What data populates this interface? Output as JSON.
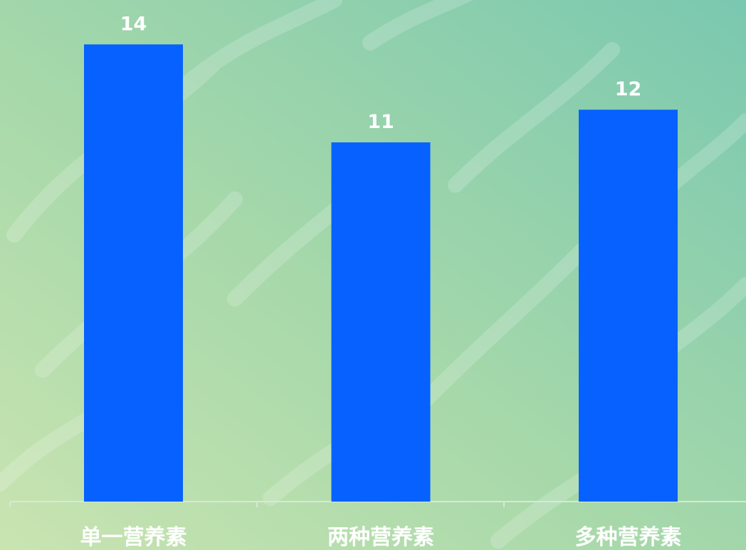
{
  "chart_data": {
    "type": "bar",
    "categories": [
      "单一营养素",
      "两种营养素",
      "多种营养素"
    ],
    "values": [
      14,
      11,
      12
    ],
    "data_labels": [
      "14",
      "11",
      "12"
    ],
    "ylim": [
      0,
      14
    ],
    "grid": false,
    "bar_color": "#0761fe",
    "label_color": "#ffffff"
  },
  "background": {
    "gradient_colors": [
      "#c6e2b0",
      "#a8d9ac",
      "#7fcab0"
    ],
    "watermark_color": "#ffffff"
  }
}
